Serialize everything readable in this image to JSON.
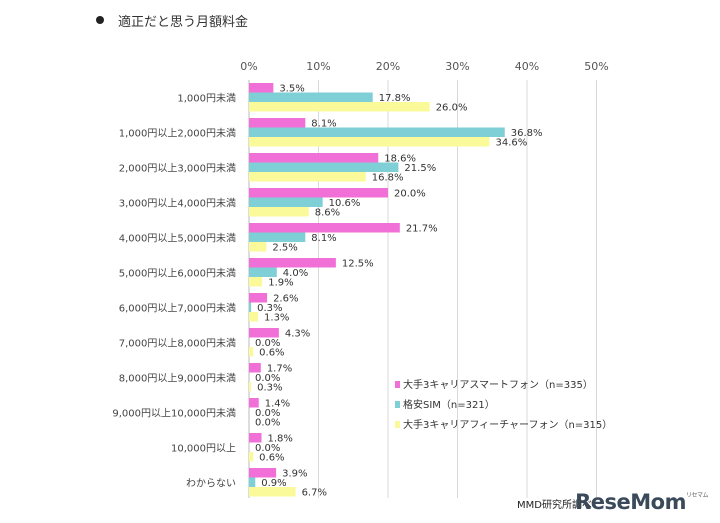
{
  "title": "適正だと思う月額料金",
  "source": "MMD研究所調べ",
  "logo": "ReseMom",
  "logo_sub": "リセマム",
  "chart_data": {
    "type": "bar",
    "orientation": "horizontal",
    "title": "",
    "xlabel": "",
    "ylabel": "",
    "xlim": [
      0,
      50
    ],
    "x_ticks": [
      "0%",
      "10%",
      "20%",
      "30%",
      "40%",
      "50%"
    ],
    "grid": true,
    "legend_position": "lower-right",
    "categories": [
      "1,000円未満",
      "1,000円以上2,000円未満",
      "2,000円以上3,000円未満",
      "3,000円以上4,000円未満",
      "4,000円以上5,000円未満",
      "5,000円以上6,000円未満",
      "6,000円以上7,000円未満",
      "7,000円以上8,000円未満",
      "8,000円以上9,000円未満",
      "9,000円以上10,000円未満",
      "10,000円以上",
      "わからない"
    ],
    "series": [
      {
        "name": "大手3キャリアスマートフォン（n=335）",
        "color": "#f070d8",
        "values": [
          3.5,
          8.1,
          18.6,
          20.0,
          21.7,
          12.5,
          2.6,
          4.3,
          1.7,
          1.4,
          1.8,
          3.9
        ],
        "labels": [
          "3.5%",
          "8.1%",
          "18.6%",
          "20.0%",
          "21.7%",
          "12.5%",
          "2.6%",
          "4.3%",
          "1.7%",
          "1.4%",
          "1.8%",
          "3.9%"
        ]
      },
      {
        "name": "格安SIM（n=321）",
        "color": "#7fcfd6",
        "values": [
          17.8,
          36.8,
          21.5,
          10.6,
          8.1,
          4.0,
          0.3,
          0.0,
          0.0,
          0.0,
          0.0,
          0.9
        ],
        "labels": [
          "17.8%",
          "36.8%",
          "21.5%",
          "10.6%",
          "8.1%",
          "4.0%",
          "0.3%",
          "0.0%",
          "0.0%",
          "0.0%",
          "0.0%",
          "0.9%"
        ]
      },
      {
        "name": "大手3キャリアフィーチャーフォン（n=315）",
        "color": "#fafa9a",
        "values": [
          26.0,
          34.6,
          16.8,
          8.6,
          2.5,
          1.9,
          1.3,
          0.6,
          0.3,
          0.0,
          0.6,
          6.7
        ],
        "labels": [
          "26.0%",
          "34.6%",
          "16.8%",
          "8.6%",
          "2.5%",
          "1.9%",
          "1.3%",
          "0.6%",
          "0.3%",
          "0.0%",
          "0.6%",
          "6.7%"
        ]
      }
    ]
  }
}
